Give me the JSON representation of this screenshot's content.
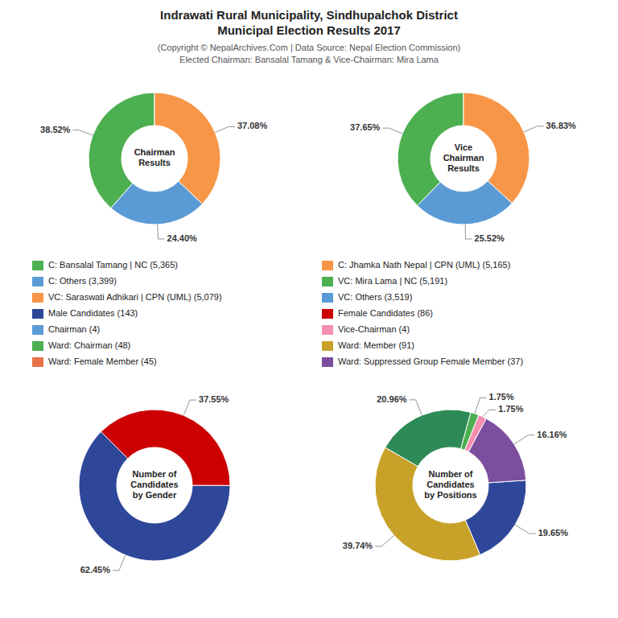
{
  "title": [
    "Indrawati Rural Municipality, Sindhupalchok District",
    "Municipal Election Results 2017"
  ],
  "subtitle": [
    "(Copyright © NepalArchives.Com | Data Source: Nepal Election Commission)",
    "Elected Chairman: Bansalal Tamang & Vice-Chairman: Mira Lama"
  ],
  "chart_data": [
    {
      "type": "pie",
      "title": "Chairman\nResults",
      "values": [
        38.52,
        24.4,
        37.08
      ],
      "value_labels": [
        "38.52%",
        "24.40%",
        "37.08%"
      ],
      "colors": [
        "#4caf50",
        "#5b9bd5",
        "#f79646"
      ],
      "data_labels": true
    },
    {
      "type": "pie",
      "title": "Vice\nChairman\nResults",
      "values": [
        37.65,
        25.52,
        36.83
      ],
      "value_labels": [
        "37.65%",
        "25.52%",
        "36.83%"
      ],
      "colors": [
        "#4caf50",
        "#5b9bd5",
        "#f79646"
      ],
      "data_labels": true
    },
    {
      "type": "pie",
      "title": "Number of\nCandidates\nby Gender",
      "values": [
        62.45,
        37.55
      ],
      "value_labels": [
        "62.45%",
        "37.55%"
      ],
      "colors": [
        "#2e4799",
        "#cc0000"
      ],
      "data_labels": true
    },
    {
      "type": "pie",
      "title": "Number of\nCandidates\nby Positions",
      "values": [
        39.74,
        19.65,
        16.16,
        1.75,
        1.75,
        20.96
      ],
      "value_labels": [
        "39.74%",
        "19.65%",
        "16.16%",
        "1.75%",
        "1.75%",
        "20.96%"
      ],
      "colors": [
        "#c8a228",
        "#2e4799",
        "#7b4f9e",
        "#f48fb1",
        "#4caf50",
        "#2e8b57"
      ],
      "data_labels": true
    }
  ],
  "legend_entries": [
    {
      "name": "C: Bansalal Tamang | NC (5,365)",
      "color": "#4caf50"
    },
    {
      "name": "C: Others (3,399)",
      "color": "#5b9bd5"
    },
    {
      "name": "VC: Saraswati Adhikari | CPN (UML) (5,079)",
      "color": "#f79646"
    },
    {
      "name": "Male Candidates (143)",
      "color": "#2e4799"
    },
    {
      "name": "Chairman (4)",
      "color": "#5b9bd5"
    },
    {
      "name": "Ward: Chairman (48)",
      "color": "#4caf50"
    },
    {
      "name": "Ward: Female Member (45)",
      "color": "#e8734a"
    },
    {
      "name": "C: Jhamka Nath Nepal | CPN (UML) (5,165)",
      "color": "#f79646"
    },
    {
      "name": "VC: Mira Lama | NC (5,191)",
      "color": "#4caf50"
    },
    {
      "name": "VC: Others (3,519)",
      "color": "#5b9bd5"
    },
    {
      "name": "Female Candidates (86)",
      "color": "#cc0000"
    },
    {
      "name": "Vice-Chairman (4)",
      "color": "#f48fb1"
    },
    {
      "name": "Ward: Member (91)",
      "color": "#c8a228"
    },
    {
      "name": "Ward: Suppressed Group Female Member (37)",
      "color": "#7b4f9e"
    }
  ]
}
